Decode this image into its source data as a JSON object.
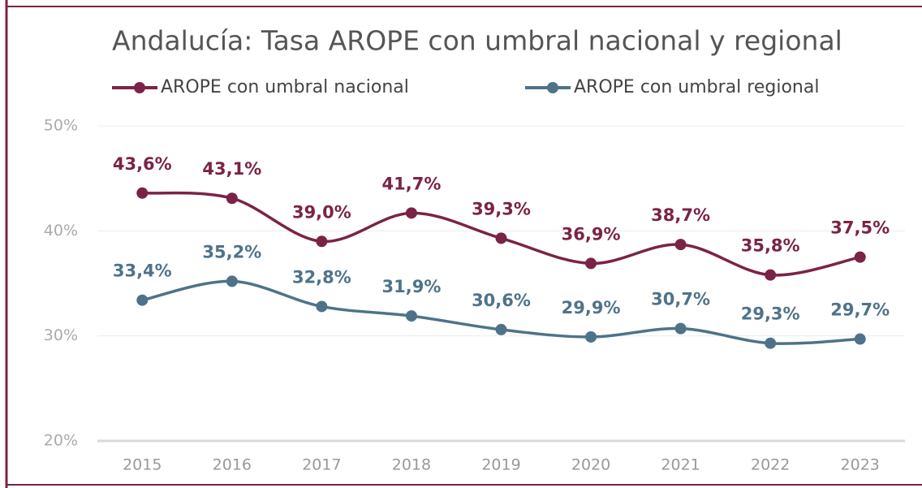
{
  "chart_data": {
    "type": "line",
    "title": "Andalucía: Tasa AROPE con umbral nacional y regional",
    "categories": [
      "2015",
      "2016",
      "2017",
      "2018",
      "2019",
      "2020",
      "2021",
      "2022",
      "2023"
    ],
    "series": [
      {
        "name": "AROPE con umbral nacional",
        "color": "#7b2346",
        "values": [
          43.6,
          43.1,
          39.0,
          41.7,
          39.3,
          36.9,
          38.7,
          35.8,
          37.5
        ],
        "value_labels": [
          "43,6%",
          "43,1%",
          "39,0%",
          "41,7%",
          "39,3%",
          "36,9%",
          "38,7%",
          "35,8%",
          "37,5%"
        ]
      },
      {
        "name": "AROPE con umbral regional",
        "color": "#4e7389",
        "values": [
          33.4,
          35.2,
          32.8,
          31.9,
          30.6,
          29.9,
          30.7,
          29.3,
          29.7
        ],
        "value_labels": [
          "33,4%",
          "35,2%",
          "32,8%",
          "31,9%",
          "30,6%",
          "29,9%",
          "30,7%",
          "29,3%",
          "29,7%"
        ]
      }
    ],
    "ylim": [
      20,
      50
    ],
    "yticks": [
      {
        "value": 20,
        "label": "20%"
      },
      {
        "value": 30,
        "label": "30%"
      },
      {
        "value": 40,
        "label": "40%"
      },
      {
        "value": 50,
        "label": "50%"
      }
    ],
    "grid": true,
    "smooth": true,
    "legend": "top"
  }
}
